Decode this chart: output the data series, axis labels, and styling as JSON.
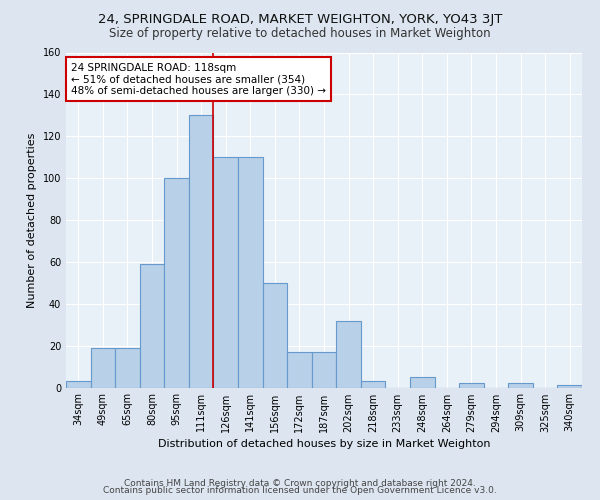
{
  "title": "24, SPRINGDALE ROAD, MARKET WEIGHTON, YORK, YO43 3JT",
  "subtitle": "Size of property relative to detached houses in Market Weighton",
  "xlabel": "Distribution of detached houses by size in Market Weighton",
  "ylabel": "Number of detached properties",
  "categories": [
    "34sqm",
    "49sqm",
    "65sqm",
    "80sqm",
    "95sqm",
    "111sqm",
    "126sqm",
    "141sqm",
    "156sqm",
    "172sqm",
    "187sqm",
    "202sqm",
    "218sqm",
    "233sqm",
    "248sqm",
    "264sqm",
    "279sqm",
    "294sqm",
    "309sqm",
    "325sqm",
    "340sqm"
  ],
  "values": [
    3,
    19,
    19,
    59,
    100,
    130,
    110,
    110,
    50,
    17,
    17,
    32,
    3,
    0,
    5,
    0,
    2,
    0,
    2,
    0,
    1
  ],
  "bar_color": "#b8d0e8",
  "bar_edge_color": "#6699cc",
  "bar_linewidth": 0.8,
  "vline_x_index": 5.5,
  "vline_color": "#cc0000",
  "vline_linewidth": 1.2,
  "annotation_text": "24 SPRINGDALE ROAD: 118sqm\n← 51% of detached houses are smaller (354)\n48% of semi-detached houses are larger (330) →",
  "annotation_box_color": "white",
  "annotation_box_edgecolor": "#cc0000",
  "ylim": [
    0,
    160
  ],
  "yticks": [
    0,
    20,
    40,
    60,
    80,
    100,
    120,
    140,
    160
  ],
  "bg_color": "#dde6f0",
  "plot_bg_color": "#e8f0f8",
  "footer_line1": "Contains HM Land Registry data © Crown copyright and database right 2024.",
  "footer_line2": "Contains public sector information licensed under the Open Government Licence v3.0.",
  "title_fontsize": 9.5,
  "subtitle_fontsize": 8.5,
  "xlabel_fontsize": 8,
  "ylabel_fontsize": 8,
  "annotation_fontsize": 7.5,
  "tick_fontsize": 7,
  "footer_fontsize": 6.5
}
